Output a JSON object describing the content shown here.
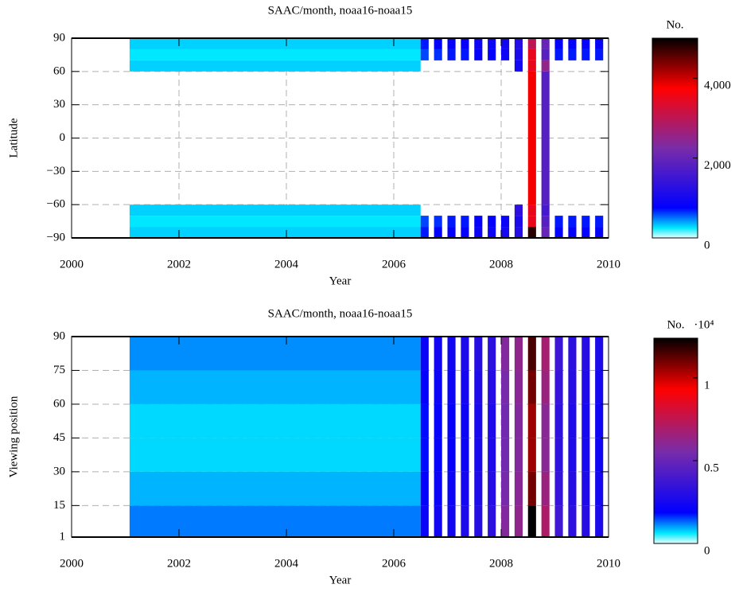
{
  "chart_data": [
    {
      "type": "heatmap",
      "title": "SAAC/month, noaa16-noaa15",
      "xlabel": "Year",
      "ylabel": "Latitude",
      "x_edges": [
        2001.08,
        2002,
        2003,
        2004,
        2005,
        2006,
        2006.5,
        2006.65,
        2006.75,
        2006.9,
        2007,
        2007.15,
        2007.25,
        2007.4,
        2007.5,
        2007.65,
        2007.75,
        2007.9,
        2008,
        2008.15,
        2008.25,
        2008.4,
        2008.5,
        2008.65,
        2008.75,
        2008.9,
        2009,
        2009.15,
        2009.25,
        2009.4,
        2009.5,
        2009.65,
        2009.75,
        2009.9,
        2010
      ],
      "y_edges": [
        -90,
        -80,
        -70,
        -60,
        60,
        70,
        80,
        90
      ],
      "values": [
        [
          300,
          300,
          300,
          300,
          300,
          300,
          700,
          null,
          750,
          null,
          800,
          null,
          800,
          null,
          900,
          null,
          900,
          null,
          1000,
          null,
          1200,
          null,
          4800,
          null,
          2000,
          null,
          800,
          null,
          800,
          null,
          800,
          null,
          800,
          null
        ],
        [
          250,
          250,
          250,
          250,
          250,
          250,
          600,
          null,
          650,
          null,
          700,
          null,
          700,
          null,
          800,
          null,
          800,
          null,
          900,
          null,
          1100,
          null,
          3500,
          null,
          1800,
          null,
          700,
          null,
          700,
          null,
          700,
          null,
          700,
          null
        ],
        [
          300,
          300,
          300,
          300,
          300,
          300,
          null,
          null,
          null,
          null,
          null,
          null,
          null,
          null,
          null,
          null,
          null,
          null,
          null,
          null,
          1300,
          null,
          3500,
          null,
          1600,
          null,
          null,
          null,
          null,
          null,
          null,
          null,
          null,
          null
        ],
        [
          null,
          null,
          null,
          null,
          null,
          null,
          null,
          null,
          null,
          null,
          null,
          null,
          null,
          null,
          null,
          null,
          null,
          null,
          null,
          null,
          null,
          null,
          3800,
          null,
          1800,
          null,
          null,
          null,
          null,
          null,
          null,
          null,
          null,
          null
        ],
        [
          300,
          300,
          300,
          300,
          300,
          300,
          null,
          null,
          null,
          null,
          null,
          null,
          null,
          null,
          null,
          null,
          null,
          null,
          null,
          null,
          1000,
          null,
          3500,
          null,
          2500,
          null,
          null,
          null,
          null,
          null,
          null,
          null,
          null,
          null
        ],
        [
          250,
          250,
          250,
          250,
          250,
          250,
          600,
          null,
          650,
          null,
          700,
          null,
          700,
          null,
          800,
          null,
          800,
          null,
          900,
          null,
          1100,
          null,
          3500,
          null,
          1800,
          null,
          700,
          null,
          700,
          null,
          700,
          null,
          700,
          null
        ],
        [
          300,
          300,
          300,
          300,
          300,
          300,
          700,
          null,
          750,
          null,
          800,
          null,
          800,
          null,
          900,
          null,
          900,
          null,
          1000,
          null,
          1200,
          null,
          3000,
          null,
          2000,
          null,
          800,
          null,
          800,
          null,
          800,
          null,
          800,
          null
        ]
      ],
      "xlim": [
        2000,
        2010
      ],
      "xticks": [
        2000,
        2002,
        2004,
        2006,
        2008,
        2010
      ],
      "ylim": [
        -90,
        90
      ],
      "yticks": [
        {
          "value": -90,
          "label": "−90"
        },
        {
          "value": -60,
          "label": "−60"
        },
        {
          "value": -30,
          "label": "−30"
        },
        0,
        30,
        60,
        90
      ],
      "grid": true,
      "colorscale": [
        "#e8ffff",
        "#00e8ff",
        "#0000ff",
        "#7a2ca8",
        "#ff0000",
        "#000000"
      ],
      "colorscale_stops": [
        0,
        0.05,
        0.15,
        0.45,
        0.75,
        1
      ],
      "colorbar": {
        "label": "No.",
        "lim": [
          0,
          5000
        ],
        "ticks": [
          0,
          {
            "value": 2000,
            "label": "2,000"
          },
          {
            "value": 4000,
            "label": "4,000"
          }
        ]
      }
    },
    {
      "type": "heatmap",
      "title": "SAAC/month, noaa16-noaa15",
      "xlabel": "Year",
      "ylabel": "Viewing position",
      "x_edges": [
        2001.08,
        2002,
        2003,
        2004,
        2005,
        2006,
        2006.5,
        2006.65,
        2006.75,
        2006.9,
        2007,
        2007.15,
        2007.25,
        2007.4,
        2007.5,
        2007.65,
        2007.75,
        2007.9,
        2008,
        2008.15,
        2008.25,
        2008.4,
        2008.5,
        2008.65,
        2008.75,
        2008.9,
        2009,
        2009.15,
        2009.25,
        2009.4,
        2009.5,
        2009.65,
        2009.75,
        2009.9,
        2010
      ],
      "y_edges": [
        1,
        15,
        30,
        45,
        60,
        75,
        90
      ],
      "values": [
        [
          1200,
          1200,
          1200,
          1200,
          1200,
          1200,
          2200,
          null,
          2400,
          null,
          2400,
          null,
          2700,
          null,
          3000,
          null,
          3200,
          null,
          5800,
          null,
          6200,
          null,
          12500,
          null,
          7000,
          null,
          3800,
          null,
          3200,
          null,
          3000,
          null,
          2700,
          null
        ],
        [
          900,
          900,
          900,
          900,
          900,
          900,
          2000,
          null,
          2200,
          null,
          2200,
          null,
          2500,
          null,
          2800,
          null,
          3000,
          null,
          5500,
          null,
          6000,
          null,
          11000,
          null,
          6500,
          null,
          3500,
          null,
          3000,
          null,
          2800,
          null,
          2500,
          null
        ],
        [
          700,
          700,
          700,
          700,
          700,
          700,
          1800,
          null,
          2000,
          null,
          2000,
          null,
          2300,
          null,
          2600,
          null,
          2800,
          null,
          5300,
          null,
          5800,
          null,
          10500,
          null,
          6000,
          null,
          3300,
          null,
          2800,
          null,
          2600,
          null,
          2300,
          null
        ],
        [
          700,
          700,
          700,
          700,
          700,
          700,
          1800,
          null,
          2000,
          null,
          2000,
          null,
          2300,
          null,
          2600,
          null,
          2800,
          null,
          5300,
          null,
          5800,
          null,
          10500,
          null,
          6000,
          null,
          3300,
          null,
          2800,
          null,
          2600,
          null,
          2300,
          null
        ],
        [
          900,
          900,
          900,
          900,
          900,
          900,
          2000,
          null,
          2200,
          null,
          2200,
          null,
          2500,
          null,
          2800,
          null,
          3000,
          null,
          5500,
          null,
          6000,
          null,
          11000,
          null,
          6500,
          null,
          3500,
          null,
          3000,
          null,
          2800,
          null,
          2500,
          null
        ],
        [
          1100,
          1100,
          1100,
          1100,
          1100,
          1100,
          2200,
          null,
          2400,
          null,
          2400,
          null,
          2700,
          null,
          3000,
          null,
          3200,
          null,
          5800,
          null,
          6200,
          null,
          11500,
          null,
          6800,
          null,
          3700,
          null,
          3200,
          null,
          3000,
          null,
          2700,
          null
        ]
      ],
      "xlim": [
        2000,
        2010
      ],
      "xticks": [
        2000,
        2002,
        2004,
        2006,
        2008,
        2010
      ],
      "ylim": [
        1,
        90
      ],
      "yticks": [
        1,
        15,
        30,
        45,
        60,
        75,
        90
      ],
      "grid": true,
      "colorscale": [
        "#e8ffff",
        "#00e8ff",
        "#0000ff",
        "#7a2ca8",
        "#ff0000",
        "#000000"
      ],
      "colorscale_stops": [
        0,
        0.05,
        0.15,
        0.45,
        0.75,
        1
      ],
      "colorbar": {
        "label": "No.",
        "multiplier": "·10⁴",
        "lim": [
          0,
          12400
        ],
        "ticks": [
          0,
          {
            "value": 5000,
            "label": "0.5"
          },
          {
            "value": 10000,
            "label": "1"
          }
        ]
      }
    }
  ]
}
